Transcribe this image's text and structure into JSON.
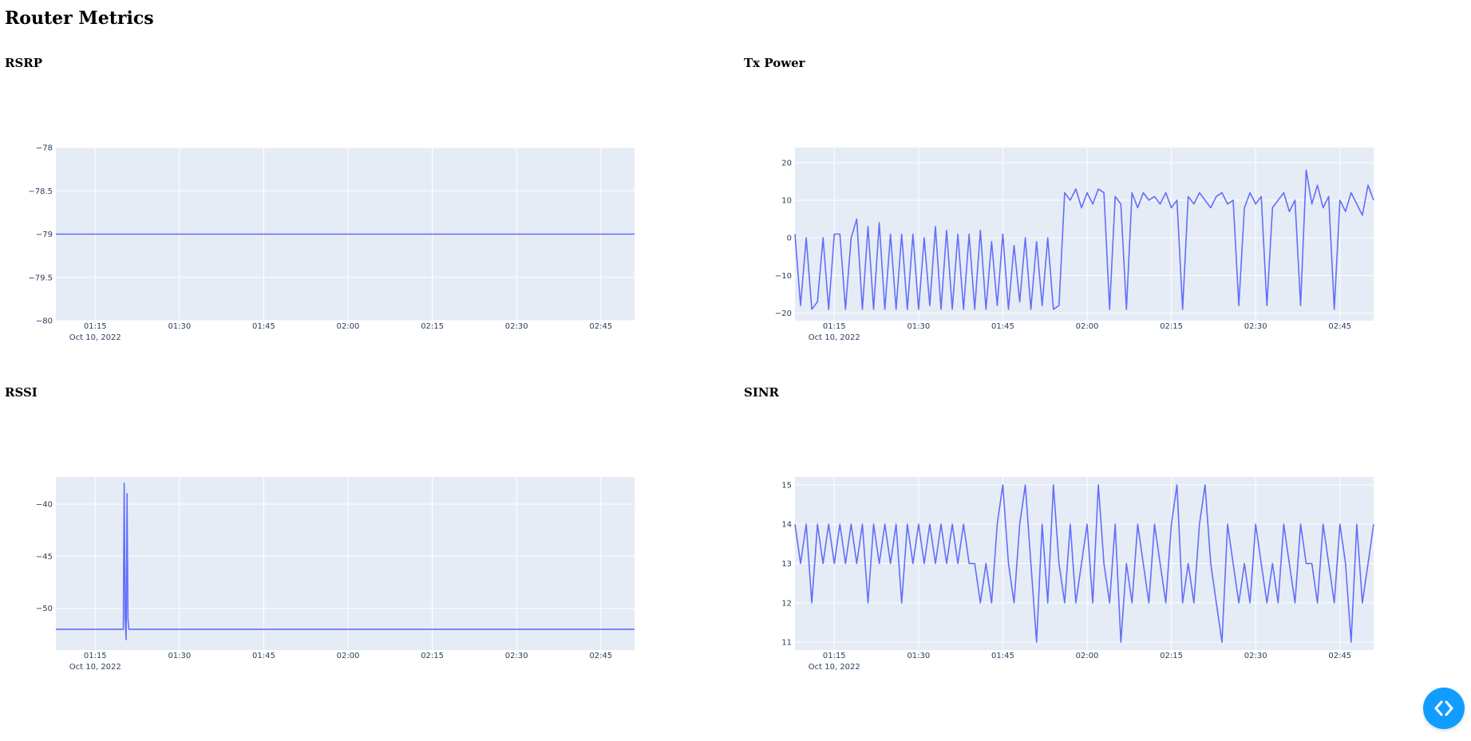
{
  "page": {
    "title": "Router Metrics"
  },
  "colors": {
    "plot_bg": "#e5ecf6",
    "grid": "#ffffff",
    "line": "#636efa",
    "tick_text": "#2a3f5f",
    "fab": "#119dff"
  },
  "toolbar": {
    "icon": "code-brackets-icon"
  },
  "x_axis": {
    "range": [
      "01:08",
      "02:51"
    ],
    "ticks": [
      "01:15",
      "01:30",
      "01:45",
      "02:00",
      "02:15",
      "02:30",
      "02:45"
    ],
    "date_label": "Oct 10, 2022"
  },
  "chart_data": [
    {
      "id": "rsrp",
      "type": "line",
      "title": "RSRP",
      "ylim": [
        -80,
        -78
      ],
      "yticks": [
        -80,
        -79.5,
        -79,
        -78.5,
        -78
      ],
      "ytick_labels": [
        "−80",
        "−79.5",
        "−79",
        "−78.5",
        "−78"
      ],
      "series": [
        {
          "x": [
            "01:08",
            "02:51"
          ],
          "y": [
            -79,
            -79
          ]
        }
      ]
    },
    {
      "id": "txpower",
      "type": "line",
      "title": "Tx Power",
      "ylim": [
        -22,
        24
      ],
      "yticks": [
        -20,
        -10,
        0,
        10,
        20
      ],
      "ytick_labels": [
        "−20",
        "−10",
        "0",
        "10",
        "20"
      ],
      "series": [
        {
          "x": [
            "01:08",
            "01:09",
            "01:10",
            "01:11",
            "01:12",
            "01:13",
            "01:14",
            "01:15",
            "01:16",
            "01:17",
            "01:18",
            "01:19",
            "01:20",
            "01:21",
            "01:22",
            "01:23",
            "01:24",
            "01:25",
            "01:26",
            "01:27",
            "01:28",
            "01:29",
            "01:30",
            "01:31",
            "01:32",
            "01:33",
            "01:34",
            "01:35",
            "01:36",
            "01:37",
            "01:38",
            "01:39",
            "01:40",
            "01:41",
            "01:42",
            "01:43",
            "01:44",
            "01:45",
            "01:46",
            "01:47",
            "01:48",
            "01:49",
            "01:50",
            "01:51",
            "01:52",
            "01:53",
            "01:54",
            "01:55",
            "01:56",
            "01:57",
            "01:58",
            "01:59",
            "02:00",
            "02:01",
            "02:02",
            "02:03",
            "02:04",
            "02:05",
            "02:06",
            "02:07",
            "02:08",
            "02:09",
            "02:10",
            "02:11",
            "02:12",
            "02:13",
            "02:14",
            "02:15",
            "02:16",
            "02:17",
            "02:18",
            "02:19",
            "02:20",
            "02:21",
            "02:22",
            "02:23",
            "02:24",
            "02:25",
            "02:26",
            "02:27",
            "02:28",
            "02:29",
            "02:30",
            "02:31",
            "02:32",
            "02:33",
            "02:34",
            "02:35",
            "02:36",
            "02:37",
            "02:38",
            "02:39",
            "02:40",
            "02:41",
            "02:42",
            "02:43",
            "02:44",
            "02:45",
            "02:46",
            "02:47",
            "02:48",
            "02:49",
            "02:50",
            "02:51"
          ],
          "y": [
            1,
            -18,
            0,
            -19,
            -17,
            0,
            -19,
            1,
            1,
            -19,
            0,
            5,
            -19,
            3,
            -19,
            4,
            -19,
            1,
            -19,
            1,
            -19,
            1,
            -19,
            0,
            -18,
            3,
            -19,
            2,
            -19,
            1,
            -19,
            1,
            -19,
            2,
            -19,
            -1,
            -18,
            1,
            -19,
            -2,
            -17,
            0,
            -19,
            -1,
            -18,
            0,
            -19,
            -18,
            12,
            10,
            13,
            8,
            12,
            9,
            13,
            12,
            -19,
            11,
            9,
            -19,
            12,
            8,
            12,
            10,
            11,
            9,
            12,
            8,
            10,
            -19,
            11,
            9,
            12,
            10,
            8,
            11,
            12,
            9,
            10,
            -18,
            8,
            12,
            9,
            11,
            -18,
            8,
            10,
            12,
            7,
            10,
            -18,
            18,
            9,
            14,
            8,
            11,
            -19,
            10,
            7,
            12,
            9,
            6,
            14,
            10
          ]
        }
      ]
    },
    {
      "id": "rssi",
      "type": "line",
      "title": "RSSI",
      "ylim": [
        -54,
        -37.4
      ],
      "yticks": [
        -50,
        -45,
        -40
      ],
      "ytick_labels": [
        "−50",
        "−45",
        "−40"
      ],
      "series": [
        {
          "x": [
            "01:08",
            "01:20:00",
            "01:20:10",
            "01:20:20",
            "01:20:30",
            "01:20:40",
            "01:20:50",
            "01:21:00",
            "01:21:10",
            "02:51"
          ],
          "y": [
            -52,
            -52,
            -38,
            -51,
            -53,
            -39,
            -51,
            -52,
            -52,
            -52
          ]
        }
      ]
    },
    {
      "id": "sinr",
      "type": "line",
      "title": "SINR",
      "ylim": [
        10.8,
        15.2
      ],
      "yticks": [
        11,
        12,
        13,
        14,
        15
      ],
      "ytick_labels": [
        "11",
        "12",
        "13",
        "14",
        "15"
      ],
      "series": [
        {
          "x": [
            "01:08",
            "01:09",
            "01:10",
            "01:11",
            "01:12",
            "01:13",
            "01:14",
            "01:15",
            "01:16",
            "01:17",
            "01:18",
            "01:19",
            "01:20",
            "01:21",
            "01:22",
            "01:23",
            "01:24",
            "01:25",
            "01:26",
            "01:27",
            "01:28",
            "01:29",
            "01:30",
            "01:31",
            "01:32",
            "01:33",
            "01:34",
            "01:35",
            "01:36",
            "01:37",
            "01:38",
            "01:39",
            "01:40",
            "01:41",
            "01:42",
            "01:43",
            "01:44",
            "01:45",
            "01:46",
            "01:47",
            "01:48",
            "01:49",
            "01:50",
            "01:51",
            "01:52",
            "01:53",
            "01:54",
            "01:55",
            "01:56",
            "01:57",
            "01:58",
            "01:59",
            "02:00",
            "02:01",
            "02:02",
            "02:03",
            "02:04",
            "02:05",
            "02:06",
            "02:07",
            "02:08",
            "02:09",
            "02:10",
            "02:11",
            "02:12",
            "02:13",
            "02:14",
            "02:15",
            "02:16",
            "02:17",
            "02:18",
            "02:19",
            "02:20",
            "02:21",
            "02:22",
            "02:23",
            "02:24",
            "02:25",
            "02:26",
            "02:27",
            "02:28",
            "02:29",
            "02:30",
            "02:31",
            "02:32",
            "02:33",
            "02:34",
            "02:35",
            "02:36",
            "02:37",
            "02:38",
            "02:39",
            "02:40",
            "02:41",
            "02:42",
            "02:43",
            "02:44",
            "02:45",
            "02:46",
            "02:47",
            "02:48",
            "02:49",
            "02:50",
            "02:51"
          ],
          "y": [
            14,
            13,
            14,
            12,
            14,
            13,
            14,
            13,
            14,
            13,
            14,
            13,
            14,
            12,
            14,
            13,
            14,
            13,
            14,
            12,
            14,
            13,
            14,
            13,
            14,
            13,
            14,
            13,
            14,
            13,
            14,
            13,
            13,
            12,
            13,
            12,
            14,
            15,
            13,
            12,
            14,
            15,
            13,
            11,
            14,
            12,
            15,
            13,
            12,
            14,
            12,
            13,
            14,
            12,
            15,
            13,
            12,
            14,
            11,
            13,
            12,
            14,
            13,
            12,
            14,
            13,
            12,
            14,
            15,
            12,
            13,
            12,
            14,
            15,
            13,
            12,
            11,
            14,
            13,
            12,
            13,
            12,
            14,
            13,
            12,
            13,
            12,
            14,
            13,
            12,
            14,
            13,
            13,
            12,
            14,
            13,
            12,
            14,
            13,
            11,
            14,
            12,
            13,
            14
          ]
        }
      ]
    }
  ]
}
